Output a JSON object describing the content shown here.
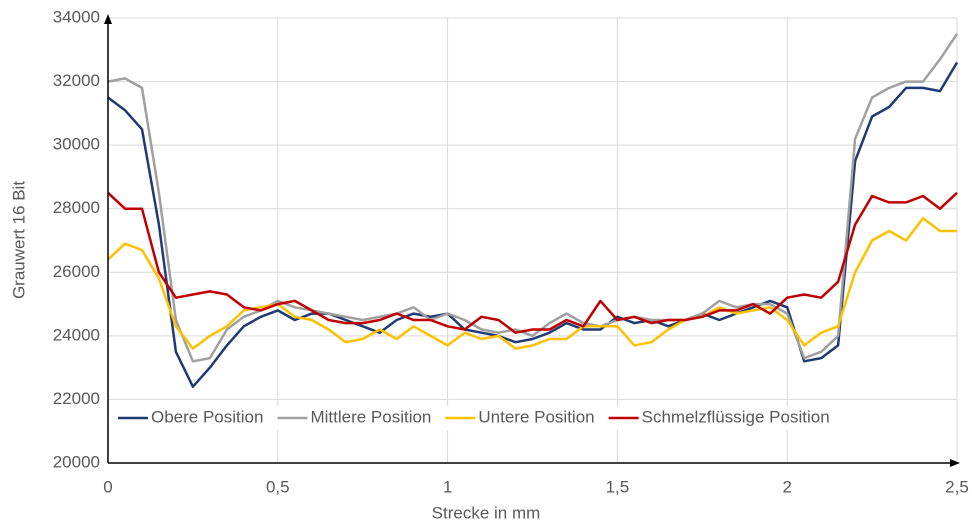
{
  "chart_data": {
    "type": "line",
    "x_label": "Strecke in mm",
    "y_label": "Grauwert 16 Bit",
    "x": [
      0,
      0.05,
      0.1,
      0.15,
      0.2,
      0.25,
      0.3,
      0.35,
      0.4,
      0.45,
      0.5,
      0.55,
      0.6,
      0.65,
      0.7,
      0.75,
      0.8,
      0.85,
      0.9,
      0.95,
      1,
      1.05,
      1.1,
      1.15,
      1.2,
      1.25,
      1.3,
      1.35,
      1.4,
      1.45,
      1.5,
      1.55,
      1.6,
      1.65,
      1.7,
      1.75,
      1.8,
      1.85,
      1.9,
      1.95,
      2,
      2.05,
      2.1,
      2.15,
      2.2,
      2.25,
      2.3,
      2.35,
      2.4,
      2.45,
      2.5
    ],
    "series": [
      {
        "name": "Obere Position",
        "color": "#1f3b73",
        "values": [
          31500,
          31100,
          30500,
          27500,
          23500,
          22400,
          23000,
          23700,
          24300,
          24600,
          24800,
          24500,
          24700,
          24700,
          24500,
          24300,
          24100,
          24500,
          24700,
          24600,
          24700,
          24200,
          24100,
          24000,
          23800,
          23900,
          24100,
          24400,
          24200,
          24200,
          24600,
          24400,
          24500,
          24300,
          24500,
          24700,
          24500,
          24700,
          24900,
          25100,
          24900,
          23200,
          23300,
          23700,
          29500,
          30900,
          31200,
          31800,
          31800,
          31700,
          32600
        ]
      },
      {
        "name": "Mittlere Position",
        "color": "#a0a0a0",
        "values": [
          32000,
          32100,
          31800,
          28500,
          24500,
          23200,
          23300,
          24200,
          24600,
          24800,
          25100,
          24900,
          24800,
          24700,
          24600,
          24500,
          24600,
          24700,
          24900,
          24500,
          24700,
          24500,
          24200,
          24100,
          24200,
          24000,
          24400,
          24700,
          24400,
          24300,
          24500,
          24600,
          24500,
          24500,
          24500,
          24700,
          25100,
          24900,
          25000,
          25000,
          24700,
          23300,
          23500,
          24000,
          30200,
          31500,
          31800,
          32000,
          32000,
          32700,
          33500
        ]
      },
      {
        "name": "Untere Position",
        "color": "#ffc000",
        "values": [
          26400,
          26900,
          26700,
          25800,
          24300,
          23600,
          24000,
          24300,
          24800,
          24900,
          25000,
          24600,
          24500,
          24200,
          23800,
          23900,
          24200,
          23900,
          24300,
          24000,
          23700,
          24100,
          23900,
          24000,
          23600,
          23700,
          23900,
          23900,
          24300,
          24300,
          24300,
          23700,
          23800,
          24200,
          24500,
          24600,
          24900,
          24700,
          24800,
          24900,
          24500,
          23700,
          24100,
          24300,
          26000,
          27000,
          27300,
          27000,
          27700,
          27300,
          27300
        ]
      },
      {
        "name": "Schmelzflüssige Position",
        "color": "#c00000",
        "values": [
          28500,
          28000,
          28000,
          26000,
          25200,
          25300,
          25400,
          25300,
          24900,
          24800,
          25000,
          25100,
          24800,
          24500,
          24400,
          24400,
          24500,
          24700,
          24500,
          24500,
          24300,
          24200,
          24600,
          24500,
          24100,
          24200,
          24200,
          24500,
          24300,
          25100,
          24500,
          24600,
          24400,
          24500,
          24500,
          24600,
          24800,
          24800,
          25000,
          24700,
          25200,
          25300,
          25200,
          25700,
          27500,
          28400,
          28200,
          28200,
          28400,
          28000,
          28500
        ]
      }
    ],
    "xlim": [
      0,
      2.5
    ],
    "xticks": [
      0,
      {
        "value": 0.5,
        "label": "0,5"
      },
      1,
      {
        "value": 1.5,
        "label": "1,5"
      },
      2,
      {
        "value": 2.5,
        "label": "2,5"
      }
    ],
    "ylim": [
      20000,
      34000
    ],
    "yticks": [
      20000,
      22000,
      24000,
      26000,
      28000,
      30000,
      32000,
      34000
    ],
    "grid": true,
    "legend": "bottom"
  }
}
